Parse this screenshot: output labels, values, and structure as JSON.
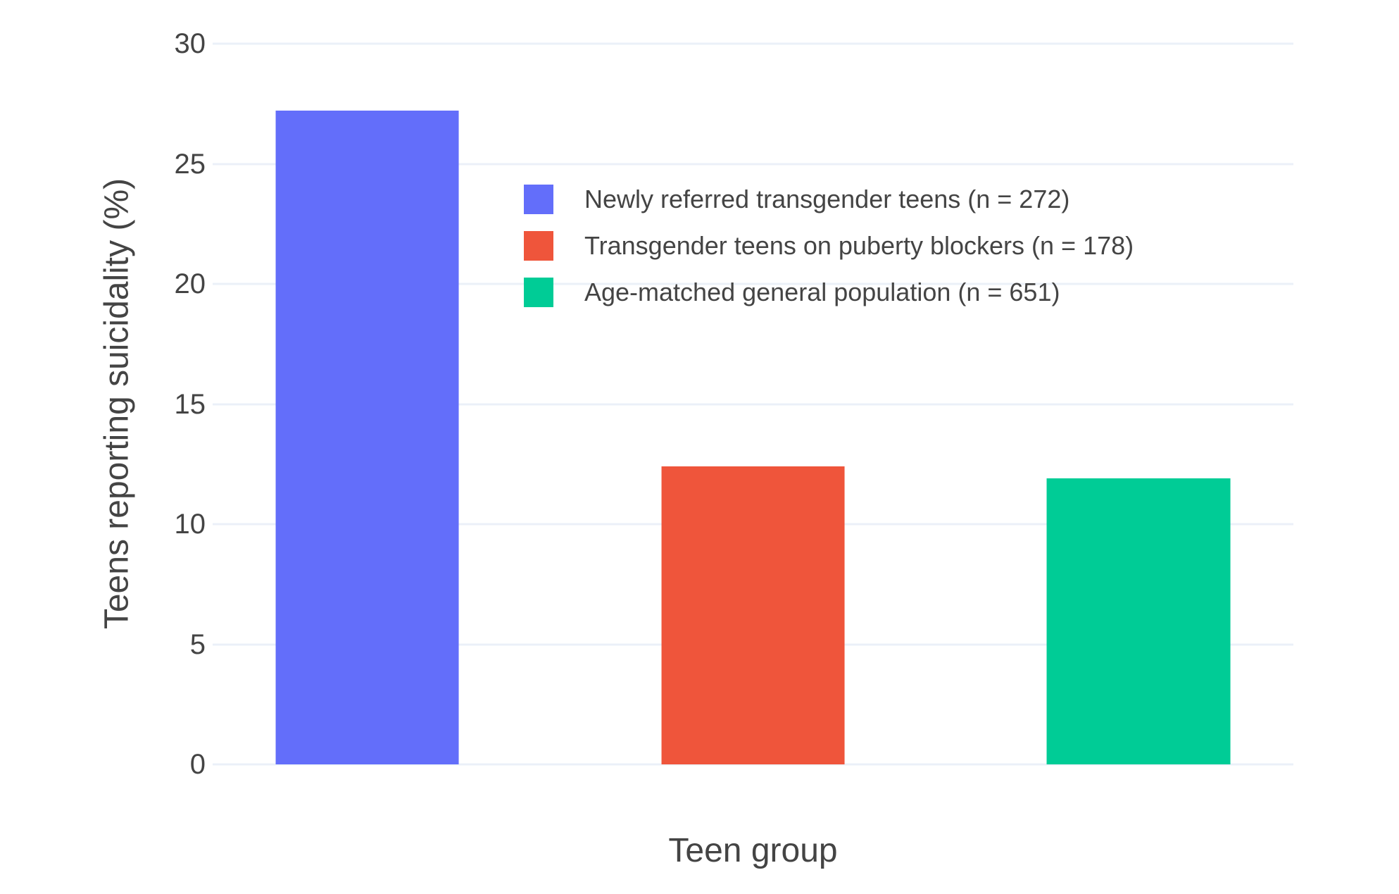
{
  "chart_data": {
    "type": "bar",
    "title": "",
    "xlabel": "Teen group",
    "ylabel": "Teens reporting suicidality (%)",
    "categories": [
      "Newly referred transgender teens (n = 272)",
      "Transgender teens on puberty blockers (n = 178)",
      "Age-matched general population (n = 651)"
    ],
    "values": [
      27.2,
      12.4,
      11.9
    ],
    "bar_colors": [
      "#636EFA",
      "#EF553B",
      "#00CC96"
    ],
    "ylim": [
      0,
      30
    ],
    "yticks": [
      0,
      5,
      10,
      15,
      20,
      25,
      30
    ],
    "grid": true,
    "x_tick_labels_shown": false,
    "legend": {
      "position": "inside plot, upper area, left of center",
      "entries": [
        {
          "label": "Newly referred transgender teens (n = 272)",
          "color": "#636EFA"
        },
        {
          "label": "Transgender teens on puberty blockers (n = 178)",
          "color": "#EF553B"
        },
        {
          "label": "Age-matched general population (n = 651)",
          "color": "#00CC96"
        }
      ]
    },
    "layout_hints": {
      "bar_center_fracs": [
        0.143,
        0.5,
        0.857
      ],
      "bar_width_frac": 0.17
    }
  },
  "style": {
    "background": "#FFFFFF",
    "grid_color": "#EBF0F8",
    "text_color": "#444444"
  }
}
